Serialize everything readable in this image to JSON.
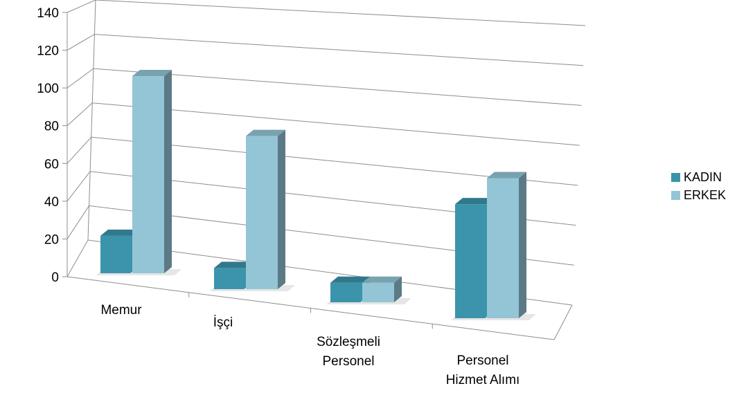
{
  "chart_data": {
    "type": "bar",
    "title": "",
    "xlabel": "",
    "ylabel": "",
    "ylim": [
      0,
      140
    ],
    "yticks": [
      0,
      20,
      40,
      60,
      80,
      100,
      120,
      140
    ],
    "grid": true,
    "legend_position": "right",
    "categories": [
      [
        "Memur"
      ],
      [
        "İşçi"
      ],
      [
        "Sözleşmeli",
        "Personel"
      ],
      [
        "Personel",
        "Hizmet Alımı"
      ]
    ],
    "series": [
      {
        "name": "KADIN",
        "color": "#3b94ab",
        "values": [
          23,
          13,
          12,
          70
        ]
      },
      {
        "name": "ERKEK",
        "color": "#93c5d6",
        "values": [
          121,
          94,
          12,
          86
        ]
      }
    ]
  }
}
